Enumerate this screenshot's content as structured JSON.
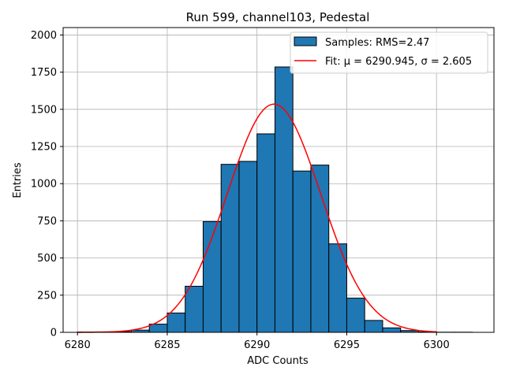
{
  "chart_data": {
    "type": "bar",
    "title": "Run 599, channel103, Pedestal",
    "xlabel": "ADC Counts",
    "ylabel": "Entries",
    "xlim": [
      6279.2,
      6303.2
    ],
    "ylim": [
      0,
      2050
    ],
    "grid": true,
    "legend_placement": "top-right",
    "x_ticks": [
      6280,
      6285,
      6290,
      6295,
      6300
    ],
    "y_ticks": [
      0,
      250,
      500,
      750,
      1000,
      1250,
      1500,
      1750,
      2000
    ],
    "x_tick_labels": [
      "6280",
      "6285",
      "6290",
      "6295",
      "6300"
    ],
    "y_tick_labels": [
      "0",
      "250",
      "500",
      "750",
      "1000",
      "1250",
      "1500",
      "1750",
      "2000"
    ],
    "bins": {
      "edges": [
        6280,
        6281,
        6282,
        6283,
        6284,
        6285,
        6286,
        6287,
        6288,
        6289,
        6290,
        6291,
        6292,
        6293,
        6294,
        6295,
        6296,
        6297,
        6298,
        6299,
        6300,
        6301,
        6302
      ],
      "counts": [
        2,
        3,
        5,
        15,
        55,
        130,
        310,
        745,
        1130,
        1150,
        1335,
        1785,
        1085,
        1125,
        595,
        230,
        80,
        30,
        12,
        3,
        1,
        1
      ]
    },
    "fit": {
      "type": "gaussian",
      "mu": 6290.945,
      "sigma": 2.605,
      "peak": 1535,
      "x_range": [
        6280,
        6300
      ]
    },
    "series": [
      {
        "name": "Samples: RMS=2.47",
        "kind": "histogram",
        "color": "#1f77b4",
        "edgecolor": "#000000"
      },
      {
        "name": "Fit: μ = 6290.945, σ = 2.605",
        "kind": "line",
        "color": "#ff0000"
      }
    ]
  }
}
